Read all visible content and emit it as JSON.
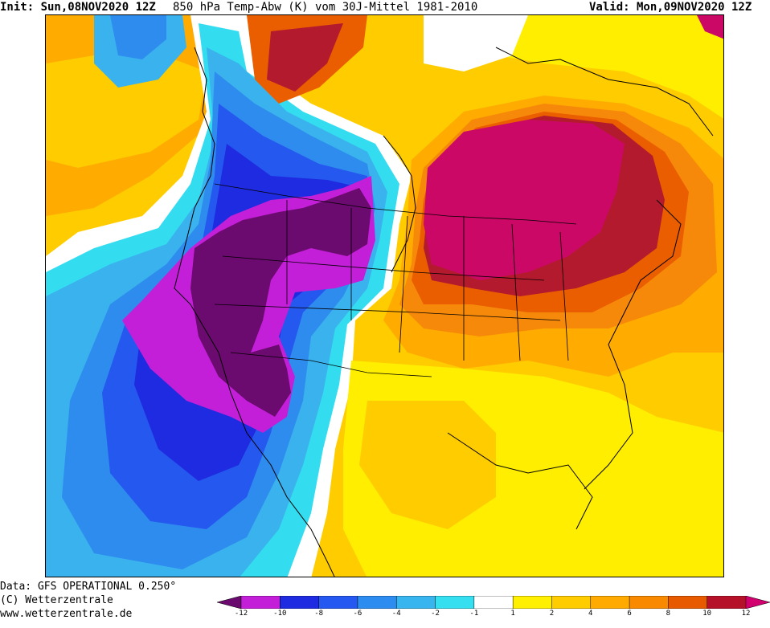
{
  "header": {
    "init": "Init: Sun,08NOV2020 12Z",
    "title": "850 hPa Temp-Abw (K) vom 30J-Mittel 1981-2010",
    "valid": "Valid: Mon,09NOV2020 12Z"
  },
  "footer": {
    "data_line": "Data: GFS OPERATIONAL 0.250°",
    "copyright_line": "(C) Wetterzentrale",
    "url_line": "www.wetterzentrale.de"
  },
  "colorbar": {
    "levels": [
      "-12",
      "-10",
      "-8",
      "-6",
      "-4",
      "-2",
      "-1",
      "1",
      "2",
      "4",
      "6",
      "8",
      "10",
      "12"
    ],
    "colors": [
      "#6a0a6e",
      "#c41fd8",
      "#1f2be0",
      "#2458f0",
      "#2c8cf0",
      "#38b4ee",
      "#35dff0",
      "#ffffff",
      "#ffef00",
      "#ffcc00",
      "#ffaa00",
      "#f98a00",
      "#e85a00",
      "#b5122a",
      "#d1006e"
    ]
  },
  "map": {
    "region": "North America",
    "field": "850 hPa temperature anomaly",
    "colors": {
      "warm_strong": "#cc0866",
      "warm_red": "#b41a2d",
      "orange_dark": "#ea5e00",
      "orange": "#f7890a",
      "orange_light": "#ffab00",
      "gold": "#ffcc00",
      "yellow": "#ffee00",
      "white": "#ffffff",
      "cyan": "#33dcef",
      "sky": "#3ab2ee",
      "blue_light": "#2e8cee",
      "blue": "#2558ef",
      "blue_dark": "#1f2be0",
      "magenta": "#c41fd8",
      "purple": "#6b0a6f",
      "coast": "#000000"
    }
  }
}
